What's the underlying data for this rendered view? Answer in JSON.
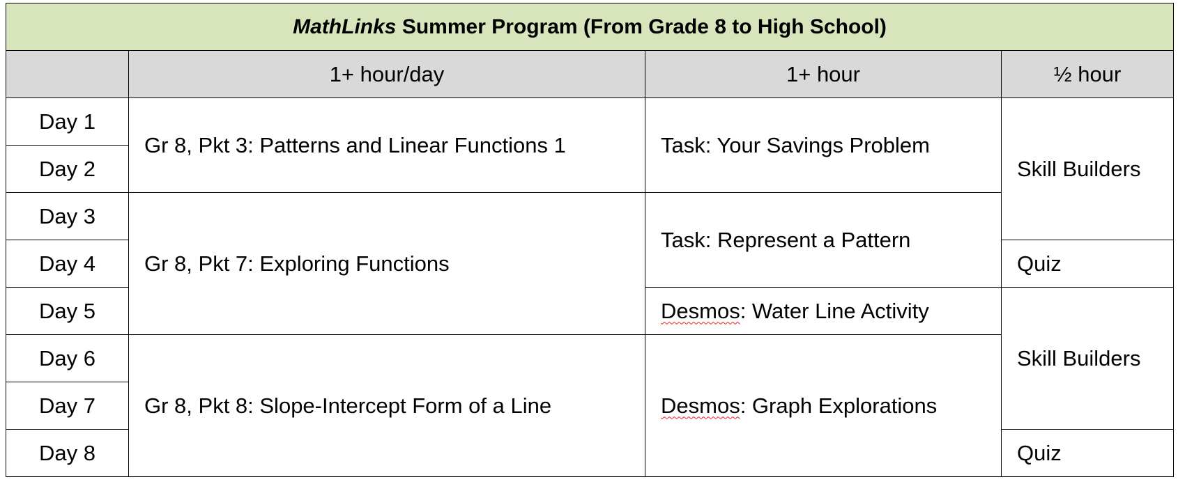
{
  "title": {
    "brand": "MathLinks",
    "rest": " Summer Program (From Grade 8 to High School)"
  },
  "headers": [
    "",
    "1+ hour/day",
    "1+ hour",
    "½  hour"
  ],
  "days": [
    "Day 1",
    "Day 2",
    "Day 3",
    "Day 4",
    "Day 5",
    "Day 6",
    "Day 7",
    "Day 8"
  ],
  "packets": [
    "Gr 8, Pkt 3: Patterns and Linear Functions 1",
    "Gr 8, Pkt 7: Exploring Functions",
    "Gr 8, Pkt 8: Slope-Intercept Form of a Line"
  ],
  "tasks": [
    {
      "prefix": "",
      "text": "Task: Your Savings Problem"
    },
    {
      "prefix": "",
      "text": "Task: Represent a Pattern"
    },
    {
      "prefix": "Desmos",
      "text": ": Water Line Activity"
    },
    {
      "prefix": "Desmos",
      "text": ": Graph Explorations"
    }
  ],
  "half_hour": [
    "Skill Builders",
    "Quiz",
    "Skill Builders",
    "Quiz"
  ]
}
